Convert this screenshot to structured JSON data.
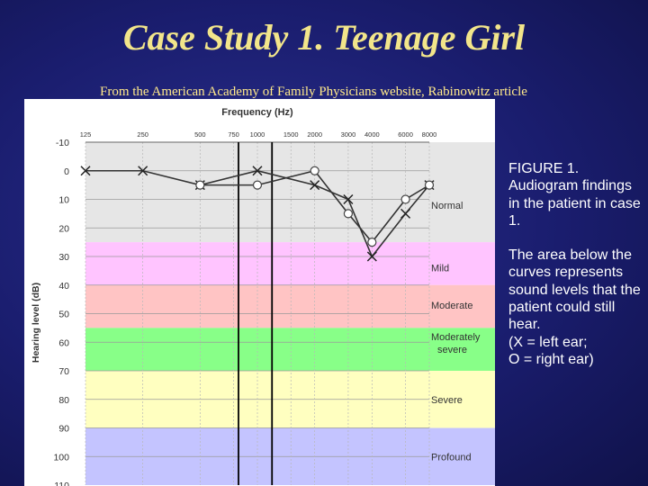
{
  "slide": {
    "title": "Case Study 1.  Teenage Girl",
    "subtitle": "From the American Academy of Family Physicians website, Rabinowitz article"
  },
  "caption": {
    "figure_label": "FIGURE 1. Audiogram findings in the patient in case 1.",
    "description": "The area below the curves represents sound levels that the patient could still hear.",
    "legend_x": "(X = left ear;",
    "legend_o": "O = right ear)"
  },
  "colors": {
    "background": "#1c1f72",
    "title": "#f2e58a",
    "normal_zone": "#e6e6e6",
    "mild_zone": "#ffc4ff",
    "moderate_zone": "#ffc4c4",
    "moderately_severe_zone": "#88ff88",
    "severe_zone": "#ffffc0",
    "profound_zone": "#c4c4ff"
  },
  "chart_data": {
    "type": "line",
    "title": "",
    "xlabel": "Frequency (Hz)",
    "ylabel": "Hearing level (dB)",
    "x_scale": "log",
    "x_ticks": [
      125,
      250,
      500,
      750,
      1000,
      1500,
      2000,
      3000,
      4000,
      6000,
      8000
    ],
    "y_ticks": [
      -10,
      0,
      10,
      20,
      30,
      40,
      50,
      60,
      70,
      80,
      90,
      100,
      110
    ],
    "ylim": [
      -10,
      110
    ],
    "y_inverted": true,
    "grid": true,
    "zones": [
      {
        "name": "Normal",
        "from": -10,
        "to": 25,
        "color": "#e6e6e6"
      },
      {
        "name": "Mild",
        "from": 25,
        "to": 40,
        "color": "#ffc4ff"
      },
      {
        "name": "Moderate",
        "from": 40,
        "to": 55,
        "color": "#ffc4c4"
      },
      {
        "name": "Moderately severe",
        "from": 55,
        "to": 70,
        "color": "#88ff88"
      },
      {
        "name": "Severe",
        "from": 70,
        "to": 90,
        "color": "#ffffc0"
      },
      {
        "name": "Profound",
        "from": 90,
        "to": 110,
        "color": "#c4c4ff"
      }
    ],
    "series": [
      {
        "marker": "x",
        "values": [
          {
            "x": 125,
            "y": 0
          },
          {
            "x": 250,
            "y": 0
          },
          {
            "x": 500,
            "y": 5
          },
          {
            "x": 1000,
            "y": 0
          },
          {
            "x": 2000,
            "y": 5
          },
          {
            "x": 3000,
            "y": 10
          },
          {
            "x": 4000,
            "y": 30
          },
          {
            "x": 6000,
            "y": 15
          },
          {
            "x": 8000,
            "y": 5
          }
        ]
      },
      {
        "marker": "o",
        "values": [
          {
            "x": 500,
            "y": 5
          },
          {
            "x": 1000,
            "y": 5
          },
          {
            "x": 2000,
            "y": 0
          },
          {
            "x": 3000,
            "y": 15
          },
          {
            "x": 4000,
            "y": 25
          },
          {
            "x": 6000,
            "y": 10
          },
          {
            "x": 8000,
            "y": 5
          }
        ]
      }
    ]
  }
}
